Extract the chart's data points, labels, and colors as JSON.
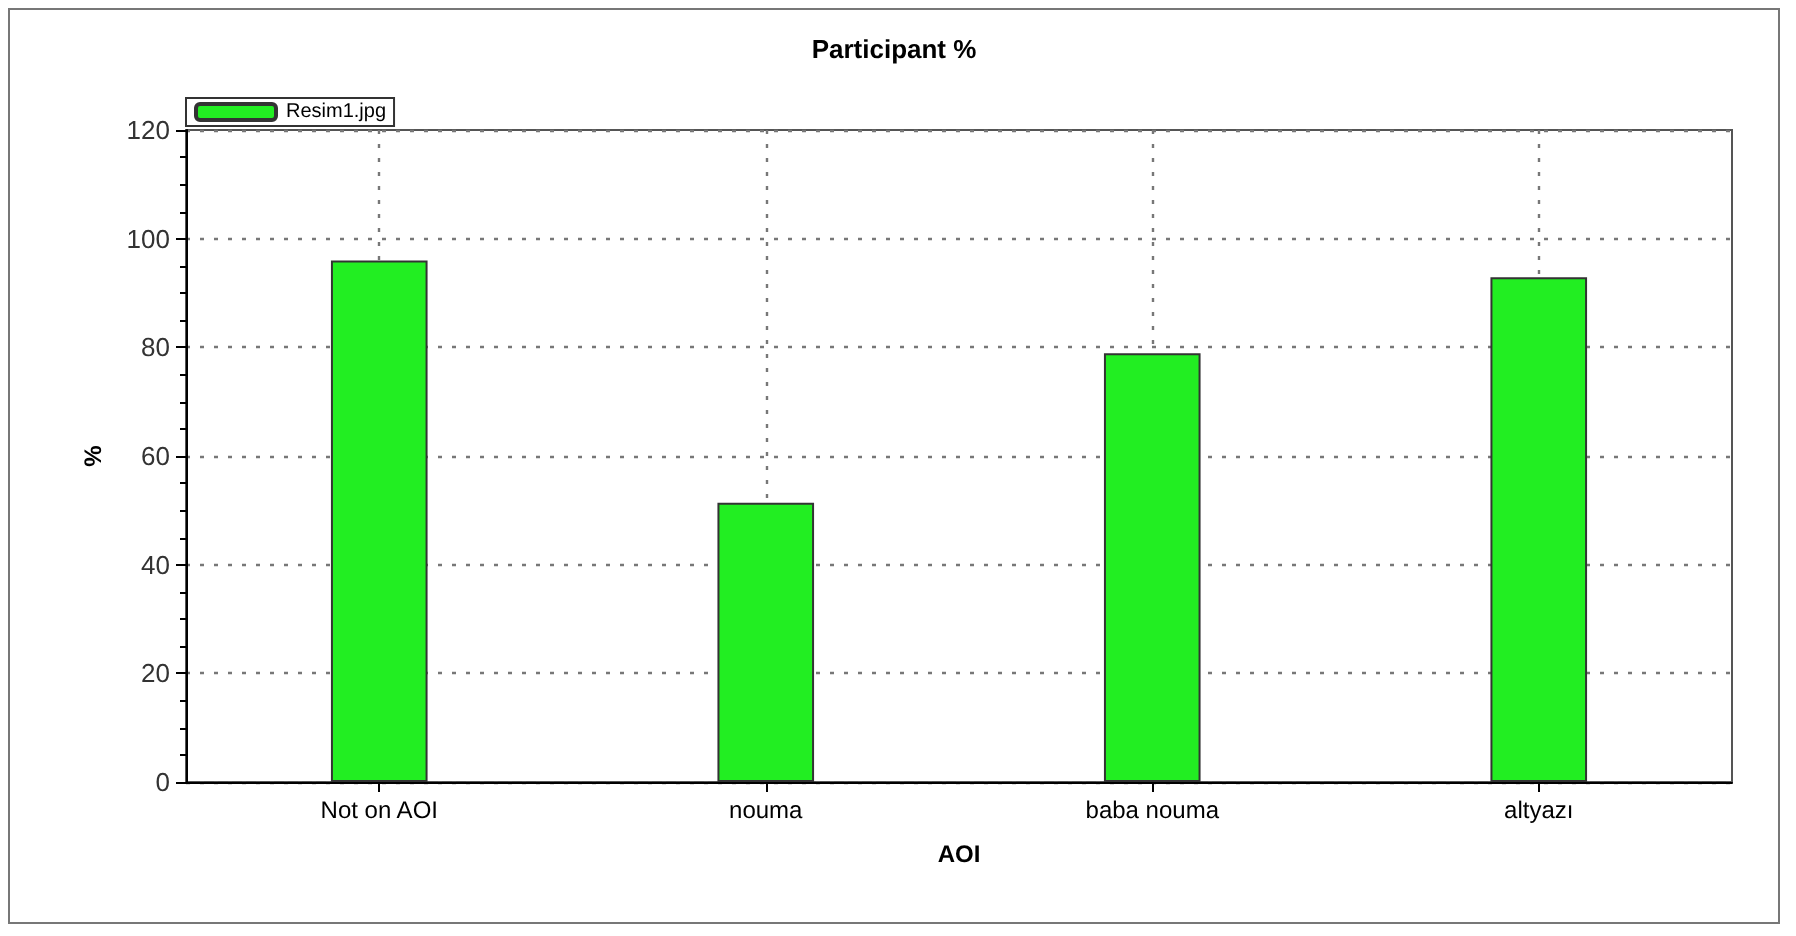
{
  "chart_data": {
    "type": "bar",
    "title": "Participant %",
    "xlabel": "AOI",
    "ylabel": "%",
    "categories": [
      "Not on AOI",
      "nouma",
      "baba nouma",
      "altyazı"
    ],
    "series": [
      {
        "name": "Resim1.jpg",
        "color": "#22ee22",
        "values": [
          96,
          51.4,
          78.9,
          92.9
        ]
      }
    ],
    "ylim": [
      0,
      120
    ],
    "yticks": [
      0,
      20,
      40,
      60,
      80,
      100,
      120
    ],
    "grid": true,
    "legend": "top left"
  }
}
